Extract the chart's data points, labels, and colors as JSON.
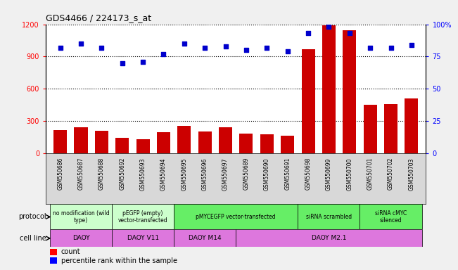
{
  "title": "GDS4466 / 224173_s_at",
  "samples": [
    "GSM550686",
    "GSM550687",
    "GSM550688",
    "GSM550692",
    "GSM550693",
    "GSM550694",
    "GSM550695",
    "GSM550696",
    "GSM550697",
    "GSM550689",
    "GSM550690",
    "GSM550691",
    "GSM550698",
    "GSM550699",
    "GSM550700",
    "GSM550701",
    "GSM550702",
    "GSM550703"
  ],
  "counts": [
    215,
    245,
    210,
    145,
    135,
    200,
    255,
    205,
    240,
    185,
    175,
    165,
    970,
    1190,
    1145,
    450,
    460,
    510
  ],
  "percentiles": [
    82,
    85,
    82,
    70,
    71,
    77,
    85,
    82,
    83,
    80,
    82,
    79,
    93,
    98,
    93,
    82,
    82,
    84
  ],
  "ylim_left": [
    0,
    1200
  ],
  "ylim_right": [
    0,
    100
  ],
  "yticks_left": [
    0,
    300,
    600,
    900,
    1200
  ],
  "yticks_right": [
    0,
    25,
    50,
    75,
    100
  ],
  "bar_color": "#cc0000",
  "dot_color": "#0000cc",
  "protocol_groups": [
    {
      "label": "no modification (wild\ntype)",
      "start": 0,
      "end": 3,
      "color": "#ccffcc"
    },
    {
      "label": "pEGFP (empty)\nvector-transfected",
      "start": 3,
      "end": 6,
      "color": "#ccffcc"
    },
    {
      "label": "pMYCEGFP vector-transfected",
      "start": 6,
      "end": 12,
      "color": "#66ee66"
    },
    {
      "label": "siRNA scrambled",
      "start": 12,
      "end": 15,
      "color": "#66ee66"
    },
    {
      "label": "siRNA cMYC\nsilenced",
      "start": 15,
      "end": 18,
      "color": "#66ee66"
    }
  ],
  "cellline_groups": [
    {
      "label": "DAOY",
      "start": 0,
      "end": 3
    },
    {
      "label": "DAOY V11",
      "start": 3,
      "end": 6
    },
    {
      "label": "DAOY M14",
      "start": 6,
      "end": 9
    },
    {
      "label": "DAOY M2.1",
      "start": 9,
      "end": 18
    }
  ],
  "cellline_color": "#dd77dd",
  "xticklabel_bg": "#d8d8d8",
  "fig_bg": "#f0f0f0"
}
